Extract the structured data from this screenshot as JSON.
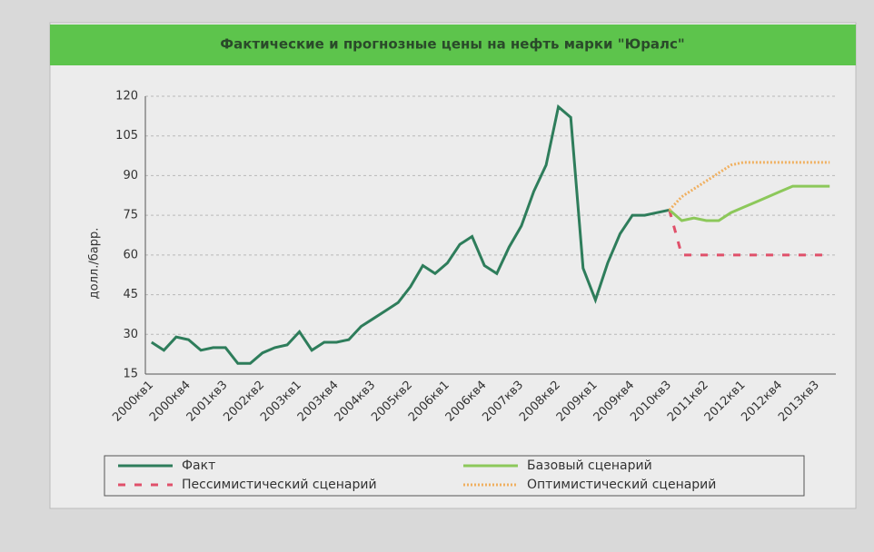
{
  "chart_data": {
    "type": "line",
    "title": "Фактические и прогнозные цены на нефть марки \"Юралс\"",
    "y_label": "долл./барр.",
    "categories": [
      "2000кв1",
      null,
      null,
      "2000кв4",
      null,
      null,
      "2001кв3",
      null,
      null,
      "2002кв2",
      null,
      null,
      "2003кв1",
      null,
      null,
      "2003кв4",
      null,
      null,
      "2004кв3",
      null,
      null,
      "2005кв2",
      null,
      null,
      "2006кв1",
      null,
      null,
      "2006кв4",
      null,
      null,
      "2007кв3",
      null,
      null,
      "2008кв2",
      null,
      null,
      "2009кв1",
      null,
      null,
      "2009кв4",
      null,
      null,
      "2010кв3",
      null,
      null,
      "2011кв2",
      null,
      null,
      "2012кв1",
      null,
      null,
      "2012кв4",
      null,
      null,
      "2013кв3",
      null
    ],
    "series": [
      {
        "name": "Факт",
        "color": "#2e7d5b",
        "dash": "none",
        "values": [
          27,
          24,
          29,
          28,
          24,
          25,
          25,
          19,
          19,
          23,
          25,
          26,
          31,
          24,
          27,
          27,
          28,
          33,
          36,
          39,
          42,
          48,
          56,
          53,
          57,
          64,
          67,
          56,
          53,
          63,
          71,
          84,
          94,
          116,
          112,
          55,
          43,
          57,
          68,
          75,
          75,
          76,
          77,
          null,
          null,
          null,
          null,
          null,
          null,
          null,
          null,
          null,
          null,
          null,
          null,
          null
        ]
      },
      {
        "name": "Пессимистический сценарий",
        "color": "#e0506a",
        "dash": "8 10",
        "values": [
          null,
          null,
          null,
          null,
          null,
          null,
          null,
          null,
          null,
          null,
          null,
          null,
          null,
          null,
          null,
          null,
          null,
          null,
          null,
          null,
          null,
          null,
          null,
          null,
          null,
          null,
          null,
          null,
          null,
          null,
          null,
          null,
          null,
          null,
          null,
          null,
          null,
          null,
          null,
          null,
          null,
          null,
          77,
          60,
          60,
          60,
          60,
          60,
          60,
          60,
          60,
          60,
          60,
          60,
          60,
          60
        ]
      },
      {
        "name": "Базовый сценарий",
        "color": "#8cc85a",
        "dash": "none",
        "values": [
          null,
          null,
          null,
          null,
          null,
          null,
          null,
          null,
          null,
          null,
          null,
          null,
          null,
          null,
          null,
          null,
          null,
          null,
          null,
          null,
          null,
          null,
          null,
          null,
          null,
          null,
          null,
          null,
          null,
          null,
          null,
          null,
          null,
          null,
          null,
          null,
          null,
          null,
          null,
          null,
          null,
          null,
          77,
          73,
          74,
          73,
          73,
          76,
          78,
          80,
          82,
          84,
          86,
          86,
          86,
          86
        ]
      },
      {
        "name": "Оптимистический сценарий",
        "color": "#f0b060",
        "dash": "2 2",
        "values": [
          null,
          null,
          null,
          null,
          null,
          null,
          null,
          null,
          null,
          null,
          null,
          null,
          null,
          null,
          null,
          null,
          null,
          null,
          null,
          null,
          null,
          null,
          null,
          null,
          null,
          null,
          null,
          null,
          null,
          null,
          null,
          null,
          null,
          null,
          null,
          null,
          null,
          null,
          null,
          null,
          null,
          null,
          77,
          82,
          85,
          88,
          91,
          94,
          95,
          95,
          95,
          95,
          95,
          95,
          95,
          95
        ]
      }
    ],
    "ylim": [
      15,
      120
    ],
    "yticks": [
      15,
      30,
      45,
      60,
      75,
      90,
      105,
      120
    ],
    "grid": true
  }
}
